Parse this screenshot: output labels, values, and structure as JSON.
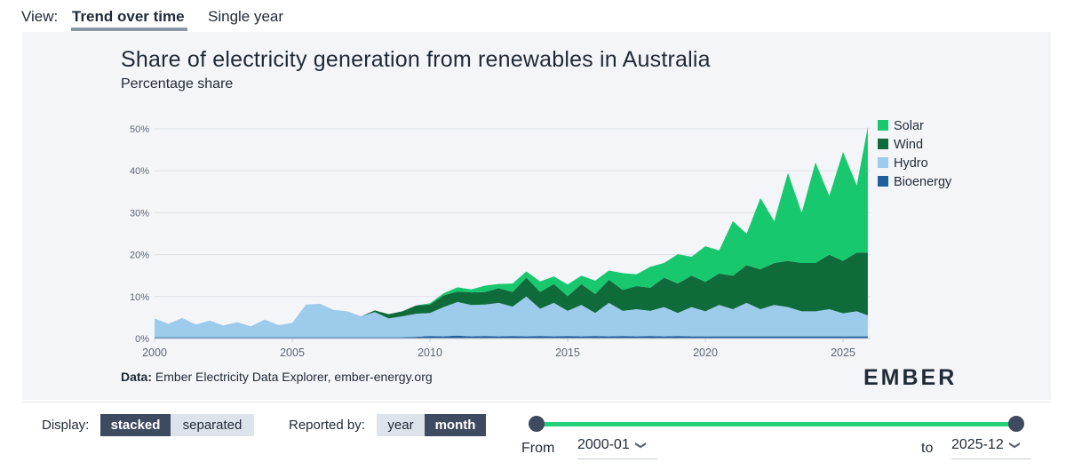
{
  "view": {
    "label": "View:",
    "tabs": [
      "Trend over time",
      "Single year"
    ],
    "active": "Trend over time"
  },
  "chart_data": {
    "type": "area",
    "stacked": true,
    "title": "Share of electricity generation from renewables in Australia",
    "subtitle": "Percentage share",
    "xlabel": "",
    "ylabel": "Percentage share",
    "xlim": [
      2000,
      2026
    ],
    "ylim": [
      0,
      50
    ],
    "y_ticks": [
      "0%",
      "10%",
      "20%",
      "30%",
      "40%",
      "50%"
    ],
    "x_ticks": [
      "2000",
      "2005",
      "2010",
      "2015",
      "2020",
      "2025"
    ],
    "legend_position": "top-right",
    "x": [
      2000.0,
      2000.5,
      2001.0,
      2001.5,
      2002.0,
      2002.5,
      2003.0,
      2003.5,
      2004.0,
      2004.5,
      2005.0,
      2005.5,
      2006.0,
      2006.5,
      2007.0,
      2007.5,
      2008.0,
      2008.5,
      2009.0,
      2009.5,
      2010.0,
      2010.5,
      2011.0,
      2011.5,
      2012.0,
      2012.5,
      2013.0,
      2013.5,
      2014.0,
      2014.5,
      2015.0,
      2015.5,
      2016.0,
      2016.5,
      2017.0,
      2017.5,
      2018.0,
      2018.5,
      2019.0,
      2019.5,
      2020.0,
      2020.5,
      2021.0,
      2021.5,
      2022.0,
      2022.5,
      2023.0,
      2023.5,
      2024.0,
      2024.5,
      2025.0,
      2025.5,
      2025.9
    ],
    "series": [
      {
        "name": "Bioenergy",
        "color": "#1f5f9e",
        "values": [
          0.3,
          0.3,
          0.3,
          0.3,
          0.3,
          0.3,
          0.3,
          0.3,
          0.3,
          0.3,
          0.3,
          0.3,
          0.3,
          0.3,
          0.3,
          0.3,
          0.3,
          0.3,
          0.3,
          0.4,
          0.6,
          0.5,
          0.7,
          0.5,
          0.6,
          0.5,
          0.6,
          0.5,
          0.6,
          0.5,
          0.6,
          0.5,
          0.6,
          0.5,
          0.6,
          0.5,
          0.6,
          0.5,
          0.6,
          0.5,
          0.5,
          0.5,
          0.5,
          0.5,
          0.5,
          0.5,
          0.5,
          0.5,
          0.5,
          0.5,
          0.5,
          0.5,
          0.5
        ]
      },
      {
        "name": "Hydro",
        "color": "#9ccbec",
        "values": [
          4.5,
          3.2,
          4.6,
          3.0,
          4.0,
          2.8,
          3.6,
          2.6,
          4.2,
          2.9,
          3.4,
          7.8,
          8.0,
          6.5,
          6.2,
          5.0,
          6.0,
          4.5,
          5.0,
          5.5,
          5.5,
          7.0,
          8.0,
          7.5,
          7.5,
          8.0,
          7.0,
          9.5,
          6.5,
          8.0,
          6.0,
          7.5,
          5.5,
          8.0,
          6.0,
          6.5,
          6.0,
          7.0,
          5.5,
          7.0,
          6.0,
          7.5,
          6.5,
          8.0,
          6.5,
          7.5,
          7.0,
          6.0,
          6.0,
          6.5,
          5.5,
          6.0,
          5.0
        ]
      },
      {
        "name": "Wind",
        "color": "#0f6b3a",
        "values": [
          0.0,
          0.0,
          0.0,
          0.0,
          0.0,
          0.0,
          0.0,
          0.0,
          0.0,
          0.0,
          0.0,
          0.0,
          0.0,
          0.0,
          0.0,
          0.0,
          0.4,
          1.0,
          1.2,
          2.0,
          2.0,
          2.8,
          2.5,
          3.0,
          3.0,
          3.5,
          3.5,
          4.5,
          4.0,
          4.5,
          3.5,
          5.0,
          4.5,
          5.5,
          5.0,
          5.5,
          5.5,
          7.0,
          7.0,
          7.5,
          7.0,
          7.5,
          8.0,
          9.0,
          9.5,
          10.0,
          11.0,
          11.5,
          11.5,
          13.0,
          12.5,
          14.0,
          15.0
        ]
      },
      {
        "name": "Solar",
        "color": "#18c86f",
        "values": [
          0.0,
          0.0,
          0.0,
          0.0,
          0.0,
          0.0,
          0.0,
          0.0,
          0.0,
          0.0,
          0.0,
          0.0,
          0.0,
          0.0,
          0.0,
          0.0,
          0.0,
          0.0,
          0.0,
          0.0,
          0.3,
          0.5,
          1.0,
          0.7,
          1.5,
          1.0,
          2.0,
          1.5,
          2.5,
          1.8,
          2.8,
          2.0,
          3.2,
          2.2,
          4.0,
          2.8,
          5.0,
          3.5,
          7.0,
          4.5,
          8.5,
          5.5,
          13.0,
          7.5,
          17.0,
          10.0,
          21.0,
          12.0,
          24.0,
          14.0,
          26.0,
          16.0,
          30.0
        ]
      }
    ]
  },
  "source": {
    "label": "Data:",
    "text": "Ember Electricity Data Explorer, ember-energy.org"
  },
  "logo": {
    "text": "EMBER"
  },
  "controls": {
    "display_label": "Display:",
    "display_options": [
      "stacked",
      "separated"
    ],
    "display_active": "stacked",
    "reported_label": "Reported by:",
    "reported_options": [
      "year",
      "month"
    ],
    "reported_active": "month",
    "from_label": "From",
    "from_value": "2000-01",
    "to_label": "to",
    "to_value": "2025-12"
  }
}
